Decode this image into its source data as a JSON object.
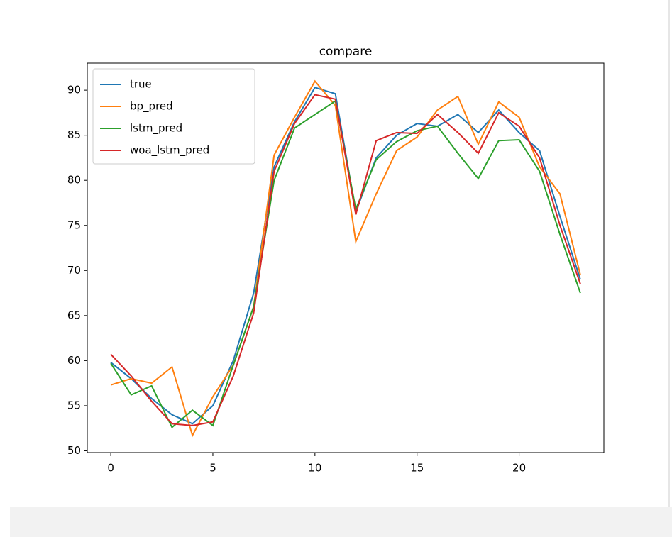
{
  "chart_data": {
    "type": "line",
    "title": "compare",
    "x": [
      0,
      1,
      2,
      3,
      4,
      5,
      6,
      7,
      8,
      9,
      10,
      11,
      12,
      13,
      14,
      15,
      16,
      17,
      18,
      19,
      20,
      21,
      22,
      23
    ],
    "series": [
      {
        "name": "true",
        "color": "#1f77b4",
        "values": [
          59.8,
          58,
          55.8,
          54,
          53,
          55,
          60,
          67.5,
          81.5,
          86.5,
          90.3,
          89.6,
          76.5,
          82.5,
          85,
          86.3,
          86,
          87.3,
          85.3,
          87.8,
          85.3,
          83.3,
          76,
          69
        ]
      },
      {
        "name": "bp_pred",
        "color": "#ff7f0e",
        "values": [
          57.3,
          58,
          57.5,
          59.3,
          51.7,
          56,
          59.5,
          66,
          82.8,
          87,
          91,
          88.3,
          73.2,
          78.5,
          83.3,
          84.8,
          87.8,
          89.3,
          84,
          88.7,
          87,
          81.5,
          78.5,
          69.5
        ]
      },
      {
        "name": "lstm_pred",
        "color": "#2ca02c",
        "values": [
          59.7,
          56.2,
          57.2,
          52.6,
          54.5,
          52.8,
          59.5,
          66,
          80,
          85.8,
          87.3,
          88.8,
          76.8,
          82.3,
          84.3,
          85.5,
          86,
          83,
          80.2,
          84.4,
          84.5,
          81,
          74,
          67.5
        ]
      },
      {
        "name": "woa_lstm_pred",
        "color": "#d62728",
        "values": [
          60.7,
          58.3,
          55.5,
          53,
          52.8,
          53.2,
          58.3,
          65.3,
          81,
          86.3,
          89.5,
          89,
          76.2,
          84.4,
          85.3,
          85.2,
          87.3,
          85.3,
          83,
          87.5,
          86,
          82.5,
          75,
          68.5
        ]
      }
    ],
    "xlim": [
      -1.15,
      24.15
    ],
    "xticks": [
      0,
      5,
      10,
      15,
      20
    ],
    "ylim": [
      49.8,
      93.0
    ],
    "yticks": [
      50,
      55,
      60,
      65,
      70,
      75,
      80,
      85,
      90
    ],
    "legend": "upper left"
  }
}
